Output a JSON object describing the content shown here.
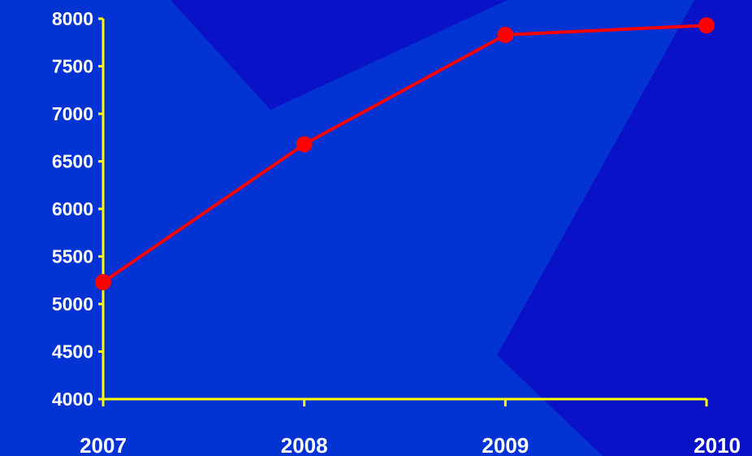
{
  "colors": {
    "background_dark": "#0a12c8",
    "background_light": "#0333d2",
    "axis": "#ffff00",
    "series": "#ff0000",
    "tick_text": "#ffffff"
  },
  "chart_data": {
    "type": "line",
    "title": "",
    "xlabel": "",
    "ylabel": "",
    "x": [
      "2007",
      "2008",
      "2009",
      "2010"
    ],
    "series": [
      {
        "values": [
          5230,
          6680,
          7830,
          7930
        ]
      }
    ],
    "ylim": [
      4000,
      8000
    ],
    "yticks": [
      "4000",
      "4500",
      "5000",
      "5500",
      "6000",
      "6500",
      "7000",
      "7500",
      "8000"
    ],
    "grid": false,
    "legend": "none"
  }
}
